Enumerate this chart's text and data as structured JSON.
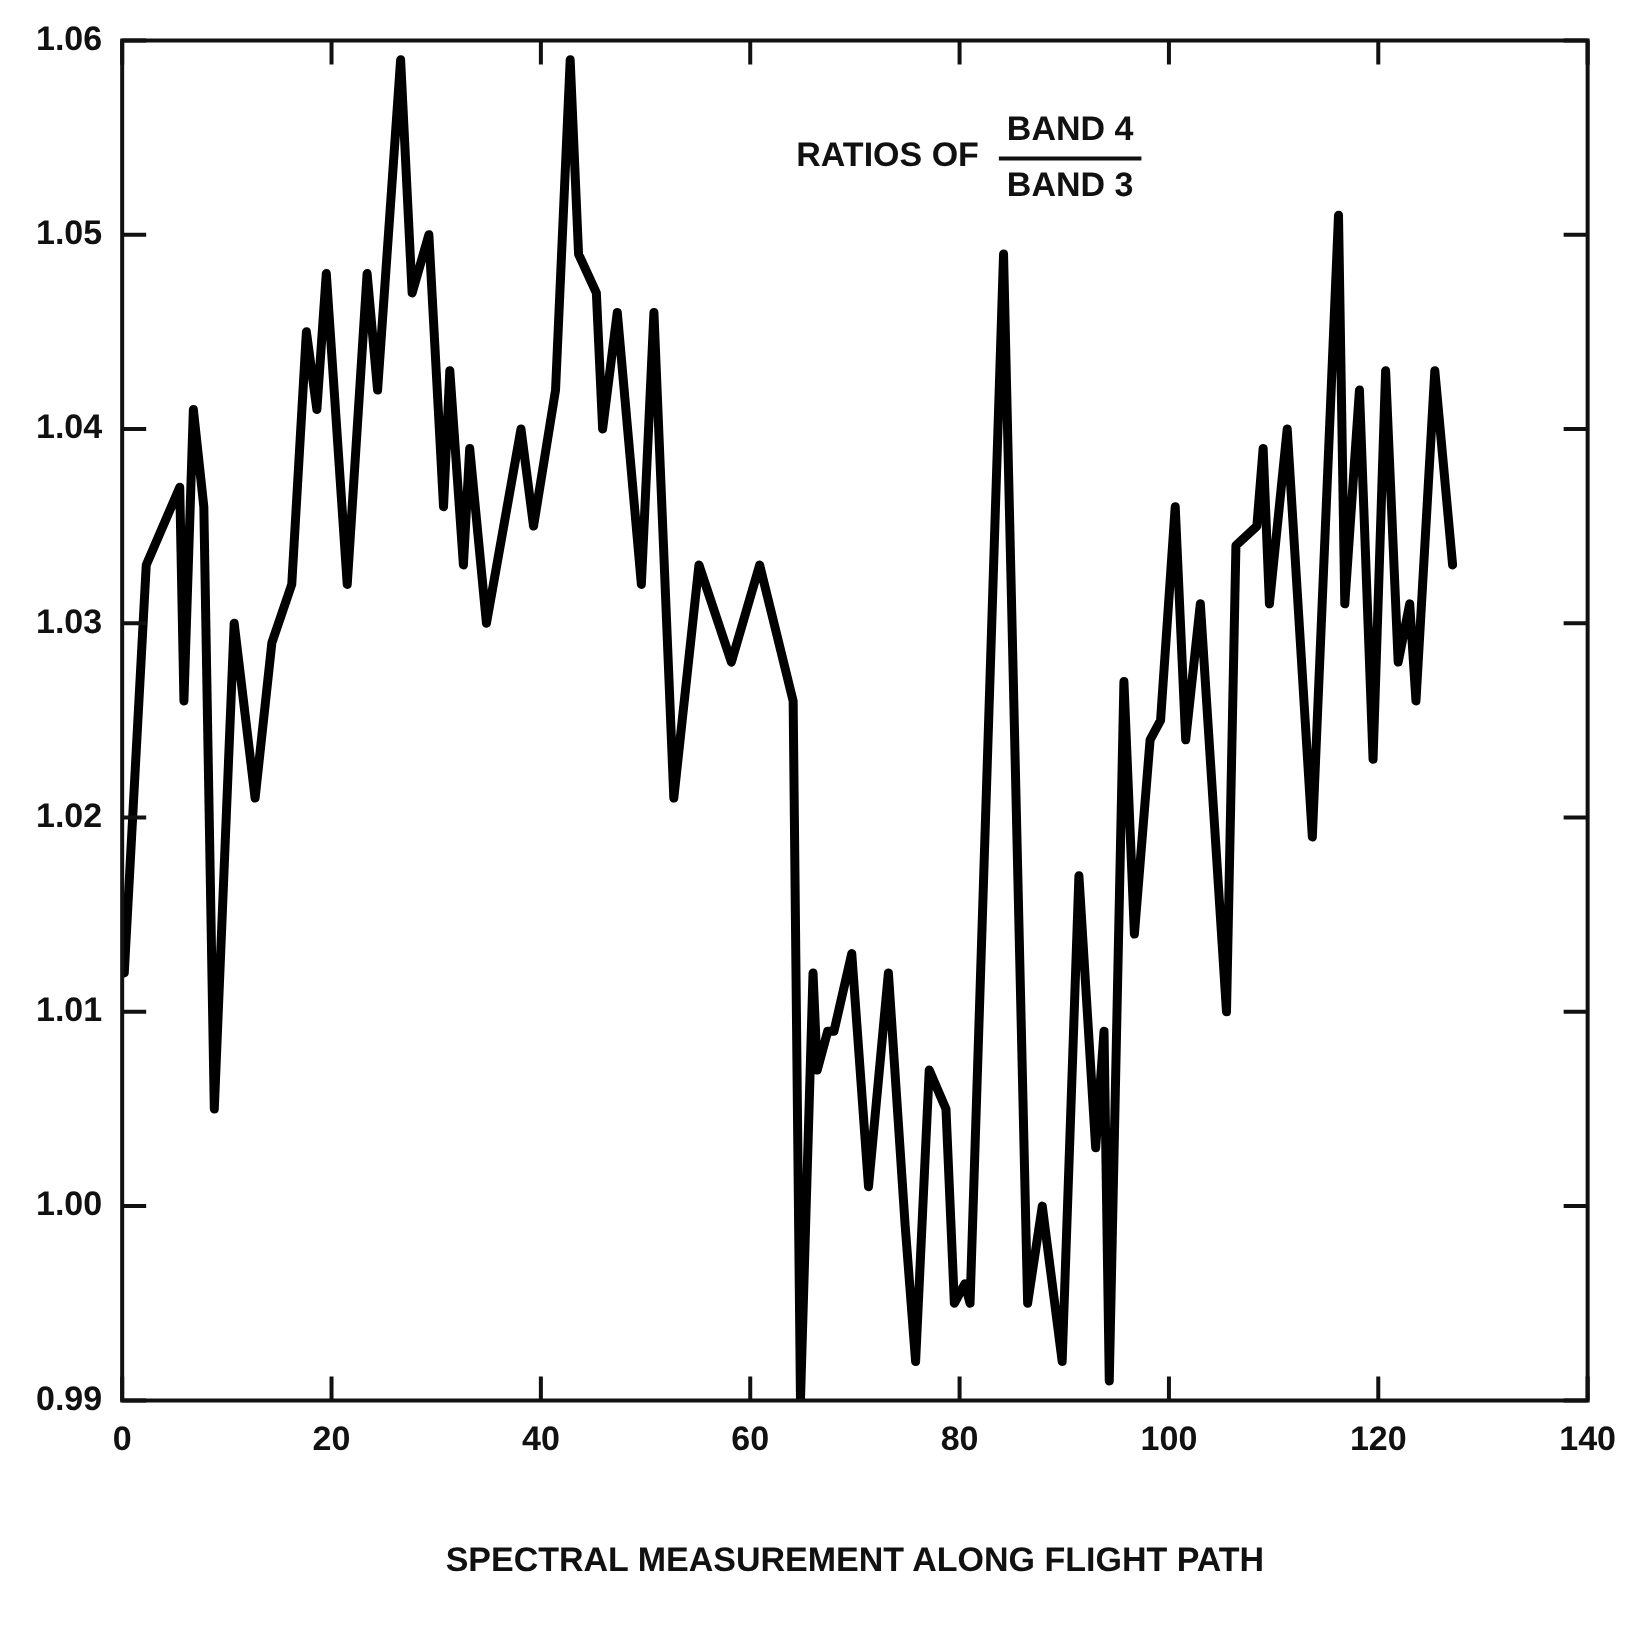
{
  "chart_data": {
    "type": "line",
    "xlabel": "SPECTRAL MEASUREMENT ALONG FLIGHT PATH",
    "annotations": [
      "RATIOS OF",
      "BAND 4",
      "BAND 3"
    ],
    "xlim": [
      0,
      140
    ],
    "xticks": [
      0,
      20,
      40,
      60,
      80,
      100,
      120,
      140
    ],
    "ylim": [
      0.99,
      1.06
    ],
    "yticks": [
      0.99,
      {
        "value": 1,
        "label": "1.00"
      },
      1.01,
      1.02,
      1.03,
      1.04,
      1.05,
      1.06
    ],
    "grid": false,
    "legend": false,
    "marker": "none",
    "line_style": "solid",
    "series": [
      {
        "color": "#000000",
        "x": [
          0.2,
          2.3,
          5.5,
          5.9,
          6.8,
          7.8,
          8.8,
          10.7,
          12.7,
          14.3,
          16.2,
          17.6,
          18.6,
          19.5,
          21.5,
          23.4,
          24.4,
          26.6,
          27.7,
          29.3,
          30.7,
          31.3,
          32.6,
          33.2,
          34.8,
          38.1,
          39.3,
          41.4,
          42.8,
          43.6,
          45.3,
          45.9,
          47.3,
          49.6,
          50.8,
          52.7,
          55.1,
          58.2,
          60.9,
          64.1,
          64.8,
          66.0,
          66.4,
          67.4,
          68.0,
          69.7,
          71.3,
          73.2,
          74.8,
          75.8,
          77.1,
          78.7,
          79.5,
          80.5,
          81.0,
          84.2,
          86.5,
          87.9,
          89.8,
          91.4,
          92.2,
          93.0,
          93.8,
          94.3,
          95.7,
          96.7,
          98.2,
          99.2,
          100.6,
          101.6,
          103.0,
          105.5,
          106.4,
          108.4,
          109.0,
          109.6,
          111.3,
          113.7,
          116.2,
          116.8,
          118.2,
          119.5,
          120.7,
          121.9,
          123.0,
          123.6,
          125.4,
          127.1
        ],
        "values": [
          1.012,
          1.033,
          1.037,
          1.026,
          1.041,
          1.036,
          1.005,
          1.03,
          1.021,
          1.029,
          1.032,
          1.045,
          1.041,
          1.048,
          1.032,
          1.048,
          1.042,
          1.059,
          1.047,
          1.05,
          1.036,
          1.043,
          1.033,
          1.039,
          1.03,
          1.04,
          1.035,
          1.042,
          1.059,
          1.049,
          1.047,
          1.04,
          1.046,
          1.032,
          1.046,
          1.021,
          1.033,
          1.028,
          1.033,
          1.026,
          0.99,
          1.012,
          1.007,
          1.009,
          1.009,
          1.013,
          1.001,
          1.012,
          0.999,
          0.992,
          1.007,
          1.005,
          0.995,
          0.996,
          0.995,
          1.049,
          0.995,
          1.0,
          0.992,
          1.017,
          1.01,
          1.003,
          1.009,
          0.991,
          1.027,
          1.014,
          1.024,
          1.025,
          1.036,
          1.024,
          1.031,
          1.01,
          1.034,
          1.035,
          1.039,
          1.031,
          1.04,
          1.019,
          1.051,
          1.031,
          1.042,
          1.023,
          1.043,
          1.028,
          1.031,
          1.026,
          1.043,
          1.033
        ]
      }
    ]
  }
}
